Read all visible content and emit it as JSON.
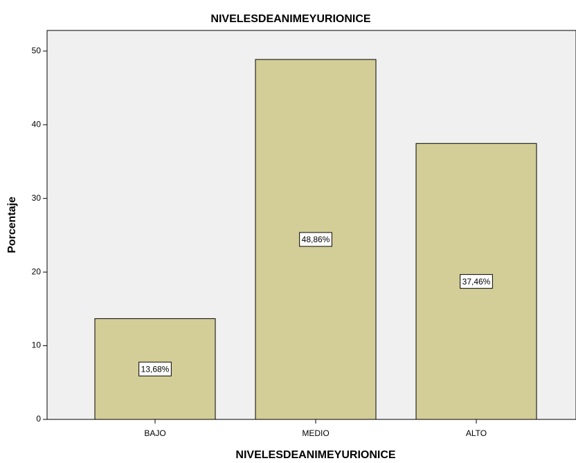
{
  "chart_data": {
    "type": "bar",
    "title": "NIVELESDEANIMEYURIONICE",
    "x_label": "NIVELESDEANIMEYURIONICE",
    "y_label": "Porcentaje",
    "categories": [
      "BAJO",
      "MEDIO",
      "ALTO"
    ],
    "values": [
      13.68,
      48.86,
      37.46
    ],
    "value_labels": [
      "13,68%",
      "48,86%",
      "37,46%"
    ],
    "color": "#d3ce97",
    "ylim": [
      0,
      52.8
    ],
    "yticks": [
      0,
      10,
      20,
      30,
      40,
      50
    ],
    "grid": false
  }
}
